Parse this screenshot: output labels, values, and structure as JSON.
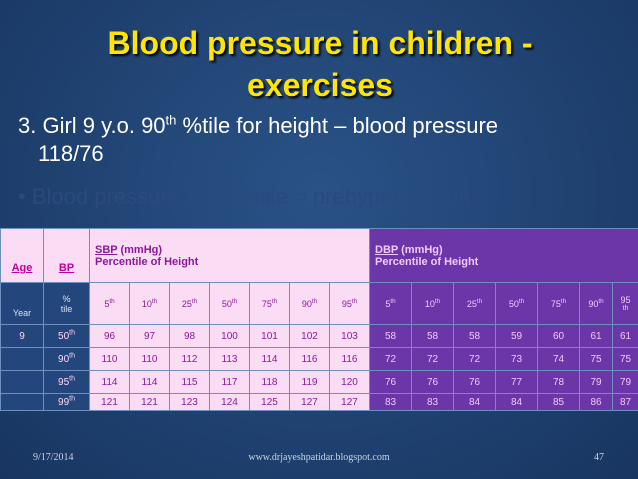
{
  "title": {
    "line1": "Blood pressure in children -",
    "line2": "exercises"
  },
  "point": {
    "prefix": "3. Girl 9 y.o. 90",
    "sup": "th",
    "suffix": " %tile for height – blood pressure",
    "line2": "118/76"
  },
  "bullet": {
    "mark": "•",
    "prefix": "Blood pressure >90",
    "sup": "th",
    "suffix": " %tile = prehypertension"
  },
  "table": {
    "age_header": "Age",
    "bp_header": "BP",
    "sbp_header": "SBP",
    "sbp_unit": " (mmHg)",
    "sbp_sub": "Percentile of Height",
    "dbp_header": "DBP",
    "dbp_unit": " (mmHg)",
    "dbp_sub": "Percentile of Height",
    "year_label": "Year",
    "tile_label_line1": "%",
    "tile_label_line2": "tile",
    "height_percentiles": [
      {
        "num": "5",
        "suf": "th"
      },
      {
        "num": "10",
        "suf": "th"
      },
      {
        "num": "25",
        "suf": "th"
      },
      {
        "num": "50",
        "suf": "th"
      },
      {
        "num": "75",
        "suf": "th"
      },
      {
        "num": "90",
        "suf": "th"
      },
      {
        "num": "95",
        "suf": "th"
      }
    ],
    "dbp_last_percentile": {
      "num": "95",
      "suf": "th"
    },
    "rows": [
      {
        "age": "9",
        "bp_num": "50",
        "bp_suf": "th",
        "sbp": [
          "96",
          "97",
          "98",
          "100",
          "101",
          "102",
          "103"
        ],
        "dbp": [
          "58",
          "58",
          "58",
          "59",
          "60",
          "61",
          "61"
        ]
      },
      {
        "age": "",
        "bp_num": "90",
        "bp_suf": "th",
        "sbp": [
          "110",
          "110",
          "112",
          "113",
          "114",
          "116",
          "116"
        ],
        "dbp": [
          "72",
          "72",
          "72",
          "73",
          "74",
          "75",
          "75"
        ]
      },
      {
        "age": "",
        "bp_num": "95",
        "bp_suf": "th",
        "sbp": [
          "114",
          "114",
          "115",
          "117",
          "118",
          "119",
          "120"
        ],
        "dbp": [
          "76",
          "76",
          "76",
          "77",
          "78",
          "79",
          "79"
        ]
      },
      {
        "age": "",
        "bp_num": "99",
        "bp_suf": "th",
        "sbp": [
          "121",
          "121",
          "123",
          "124",
          "125",
          "127",
          "127"
        ],
        "dbp": [
          "83",
          "83",
          "84",
          "84",
          "85",
          "86",
          "87"
        ]
      }
    ]
  },
  "footer": {
    "date": "9/17/2014",
    "url": "www.drjayeshpatidar.blogspot.com",
    "page": "47"
  }
}
